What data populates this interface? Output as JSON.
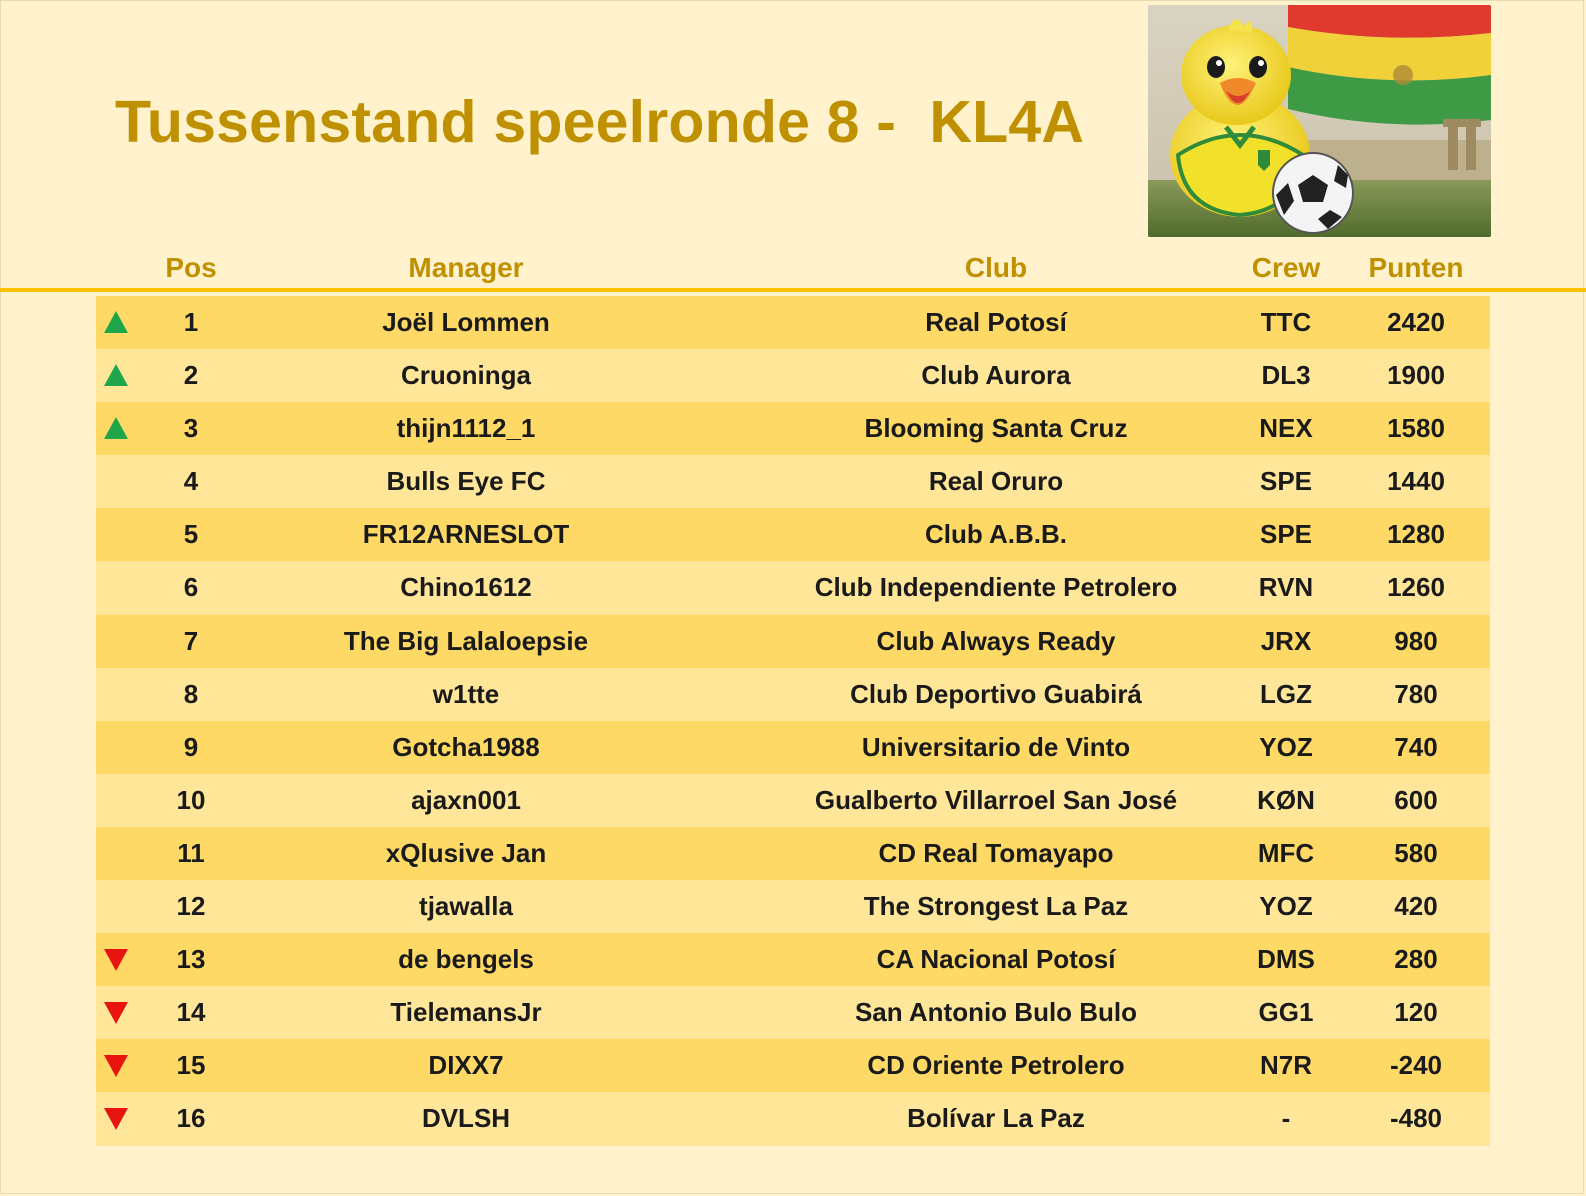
{
  "title": "Tussenstand speelronde 8 -  KL4A",
  "colors": {
    "title": "#bf9000",
    "accent": "#ffc000",
    "row_odd": "#ffd966",
    "row_even": "#ffe699",
    "up": "#1fa64a",
    "down": "#e8140f"
  },
  "table": {
    "headers": {
      "pos": "Pos",
      "manager": "Manager",
      "club": "Club",
      "crew": "Crew",
      "points": "Punten"
    },
    "rows": [
      {
        "trend": "up",
        "pos": "1",
        "manager": "Joël Lommen",
        "club": "Real Potosí",
        "crew": "TTC",
        "points": "2420"
      },
      {
        "trend": "up",
        "pos": "2",
        "manager": "Cruoninga",
        "club": "Club Aurora",
        "crew": "DL3",
        "points": "1900"
      },
      {
        "trend": "up",
        "pos": "3",
        "manager": "thijn1112_1",
        "club": "Blooming Santa Cruz",
        "crew": "NEX",
        "points": "1580"
      },
      {
        "trend": "none",
        "pos": "4",
        "manager": "Bulls Eye FC",
        "club": "Real Oruro",
        "crew": "SPE",
        "points": "1440"
      },
      {
        "trend": "none",
        "pos": "5",
        "manager": "FR12ARNESLOT",
        "club": "Club A.B.B.",
        "crew": "SPE",
        "points": "1280"
      },
      {
        "trend": "none",
        "pos": "6",
        "manager": "Chino1612",
        "club": "Club Independiente Petrolero",
        "crew": "RVN",
        "points": "1260"
      },
      {
        "trend": "none",
        "pos": "7",
        "manager": "The Big Lalaloepsie",
        "club": "Club Always Ready",
        "crew": "JRX",
        "points": "980"
      },
      {
        "trend": "none",
        "pos": "8",
        "manager": "w1tte",
        "club": "Club Deportivo Guabirá",
        "crew": "LGZ",
        "points": "780"
      },
      {
        "trend": "none",
        "pos": "9",
        "manager": "Gotcha1988",
        "club": "Universitario de Vinto",
        "crew": "YOZ",
        "points": "740"
      },
      {
        "trend": "none",
        "pos": "10",
        "manager": "ajaxn001",
        "club": "Gualberto Villarroel San José",
        "crew": "KØN",
        "points": "600"
      },
      {
        "trend": "none",
        "pos": "11",
        "manager": "xQlusive Jan",
        "club": "CD Real Tomayapo",
        "crew": "MFC",
        "points": "580"
      },
      {
        "trend": "none",
        "pos": "12",
        "manager": "tjawalla",
        "club": "The Strongest La Paz",
        "crew": "YOZ",
        "points": "420"
      },
      {
        "trend": "down",
        "pos": "13",
        "manager": "de bengels",
        "club": "CA Nacional Potosí",
        "crew": "DMS",
        "points": "280"
      },
      {
        "trend": "down",
        "pos": "14",
        "manager": "TielemansJr",
        "club": "San Antonio Bulo Bulo",
        "crew": "GG1",
        "points": "120"
      },
      {
        "trend": "down",
        "pos": "15",
        "manager": "DIXX7",
        "club": "CD Oriente Petrolero",
        "crew": "N7R",
        "points": "-240"
      },
      {
        "trend": "down",
        "pos": "16",
        "manager": "DVLSH",
        "club": "Bolívar La Paz",
        "crew": "-",
        "points": "-480"
      }
    ]
  }
}
